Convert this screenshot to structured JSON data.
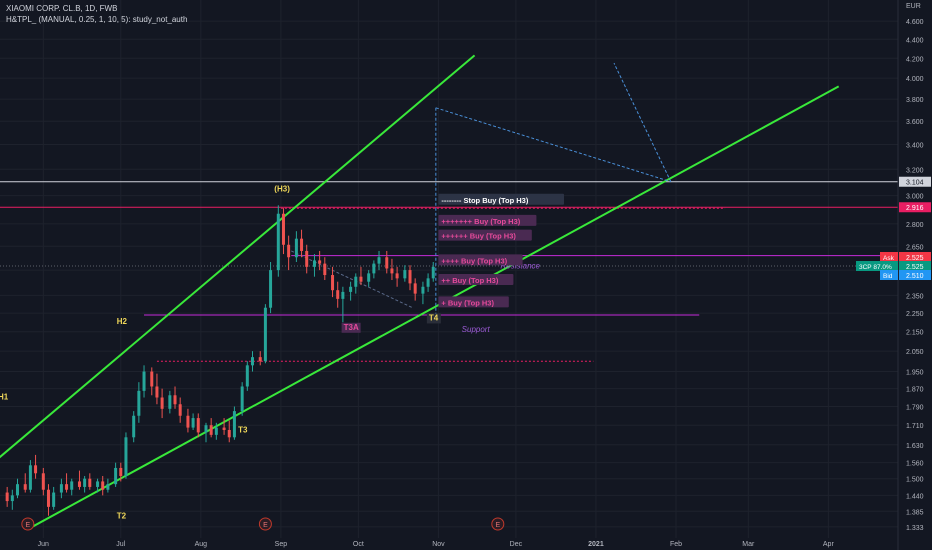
{
  "header": {
    "symbol_line": "XIAOMI CORP. CL.B, 1D, FWB",
    "study_line": "H&TPL_ (MANUAL, 0.25, 1, 10, 5): study_not_auth"
  },
  "colors": {
    "background": "#131722",
    "up": "#26a69a",
    "down": "#ef5350",
    "channel": "#39e83a",
    "magenta": "#c62bd9",
    "red_line": "#e91e63",
    "label_text": "#f0d85a",
    "buy_box": "#4a2a52",
    "buy_text": "#e64a9b"
  },
  "chart_data": {
    "type": "candlestick",
    "currency": "EUR",
    "x_ticks": [
      "Jun",
      "Jul",
      "Aug",
      "Sep",
      "Oct",
      "Nov",
      "Dec",
      "2021",
      "Feb",
      "Mar",
      "Apr"
    ],
    "y_ticks": [
      "4.600",
      "4.400",
      "4.200",
      "4.000",
      "3.800",
      "3.600",
      "3.400",
      "3.200",
      "3.000",
      "2.800",
      "2.650",
      "2.500",
      "2.350",
      "2.250",
      "2.150",
      "2.050",
      "1.950",
      "1.870",
      "1.790",
      "1.710",
      "1.630",
      "1.560",
      "1.500",
      "1.440",
      "1.385",
      "1.333"
    ],
    "ylim": [
      1.31,
      4.75
    ],
    "scale": "log",
    "series": [
      {
        "date": "2020-05-18",
        "o": 1.45,
        "h": 1.47,
        "l": 1.4,
        "c": 1.42
      },
      {
        "date": "2020-05-20",
        "o": 1.42,
        "h": 1.46,
        "l": 1.39,
        "c": 1.44
      },
      {
        "date": "2020-05-22",
        "o": 1.44,
        "h": 1.5,
        "l": 1.43,
        "c": 1.48
      },
      {
        "date": "2020-05-25",
        "o": 1.48,
        "h": 1.52,
        "l": 1.45,
        "c": 1.46
      },
      {
        "date": "2020-05-27",
        "o": 1.46,
        "h": 1.57,
        "l": 1.45,
        "c": 1.55
      },
      {
        "date": "2020-05-29",
        "o": 1.55,
        "h": 1.59,
        "l": 1.5,
        "c": 1.52
      },
      {
        "date": "2020-06-01",
        "o": 1.52,
        "h": 1.54,
        "l": 1.44,
        "c": 1.46
      },
      {
        "date": "2020-06-03",
        "o": 1.46,
        "h": 1.48,
        "l": 1.37,
        "c": 1.4
      },
      {
        "date": "2020-06-05",
        "o": 1.4,
        "h": 1.47,
        "l": 1.39,
        "c": 1.45
      },
      {
        "date": "2020-06-08",
        "o": 1.45,
        "h": 1.5,
        "l": 1.43,
        "c": 1.48
      },
      {
        "date": "2020-06-10",
        "o": 1.48,
        "h": 1.52,
        "l": 1.45,
        "c": 1.46
      },
      {
        "date": "2020-06-12",
        "o": 1.46,
        "h": 1.5,
        "l": 1.44,
        "c": 1.49
      },
      {
        "date": "2020-06-15",
        "o": 1.49,
        "h": 1.53,
        "l": 1.46,
        "c": 1.47
      },
      {
        "date": "2020-06-17",
        "o": 1.47,
        "h": 1.51,
        "l": 1.45,
        "c": 1.5
      },
      {
        "date": "2020-06-19",
        "o": 1.5,
        "h": 1.52,
        "l": 1.46,
        "c": 1.47
      },
      {
        "date": "2020-06-22",
        "o": 1.47,
        "h": 1.5,
        "l": 1.45,
        "c": 1.49
      },
      {
        "date": "2020-06-24",
        "o": 1.49,
        "h": 1.51,
        "l": 1.44,
        "c": 1.46
      },
      {
        "date": "2020-06-26",
        "o": 1.46,
        "h": 1.5,
        "l": 1.45,
        "c": 1.48
      },
      {
        "date": "2020-06-29",
        "o": 1.48,
        "h": 1.56,
        "l": 1.47,
        "c": 1.54
      },
      {
        "date": "2020-07-01",
        "o": 1.54,
        "h": 1.56,
        "l": 1.49,
        "c": 1.51
      },
      {
        "date": "2020-07-03",
        "o": 1.51,
        "h": 1.68,
        "l": 1.5,
        "c": 1.66
      },
      {
        "date": "2020-07-06",
        "o": 1.66,
        "h": 1.77,
        "l": 1.64,
        "c": 1.75
      },
      {
        "date": "2020-07-08",
        "o": 1.75,
        "h": 1.9,
        "l": 1.72,
        "c": 1.86
      },
      {
        "date": "2020-07-10",
        "o": 1.86,
        "h": 1.98,
        "l": 1.83,
        "c": 1.95
      },
      {
        "date": "2020-07-13",
        "o": 1.95,
        "h": 1.97,
        "l": 1.84,
        "c": 1.88
      },
      {
        "date": "2020-07-15",
        "o": 1.88,
        "h": 1.94,
        "l": 1.8,
        "c": 1.83
      },
      {
        "date": "2020-07-17",
        "o": 1.83,
        "h": 1.87,
        "l": 1.74,
        "c": 1.78
      },
      {
        "date": "2020-07-20",
        "o": 1.78,
        "h": 1.86,
        "l": 1.76,
        "c": 1.84
      },
      {
        "date": "2020-07-22",
        "o": 1.84,
        "h": 1.88,
        "l": 1.78,
        "c": 1.8
      },
      {
        "date": "2020-07-24",
        "o": 1.8,
        "h": 1.83,
        "l": 1.72,
        "c": 1.75
      },
      {
        "date": "2020-07-27",
        "o": 1.75,
        "h": 1.78,
        "l": 1.68,
        "c": 1.7
      },
      {
        "date": "2020-07-29",
        "o": 1.7,
        "h": 1.76,
        "l": 1.69,
        "c": 1.74
      },
      {
        "date": "2020-07-31",
        "o": 1.74,
        "h": 1.76,
        "l": 1.66,
        "c": 1.68
      },
      {
        "date": "2020-08-03",
        "o": 1.68,
        "h": 1.72,
        "l": 1.64,
        "c": 1.71
      },
      {
        "date": "2020-08-05",
        "o": 1.71,
        "h": 1.74,
        "l": 1.66,
        "c": 1.67
      },
      {
        "date": "2020-08-07",
        "o": 1.67,
        "h": 1.72,
        "l": 1.65,
        "c": 1.7
      },
      {
        "date": "2020-08-10",
        "o": 1.7,
        "h": 1.74,
        "l": 1.67,
        "c": 1.69
      },
      {
        "date": "2020-08-12",
        "o": 1.69,
        "h": 1.73,
        "l": 1.64,
        "c": 1.66
      },
      {
        "date": "2020-08-14",
        "o": 1.66,
        "h": 1.79,
        "l": 1.65,
        "c": 1.77
      },
      {
        "date": "2020-08-17",
        "o": 1.77,
        "h": 1.9,
        "l": 1.75,
        "c": 1.88
      },
      {
        "date": "2020-08-19",
        "o": 1.88,
        "h": 2.0,
        "l": 1.86,
        "c": 1.98
      },
      {
        "date": "2020-08-21",
        "o": 1.98,
        "h": 2.05,
        "l": 1.95,
        "c": 2.02
      },
      {
        "date": "2020-08-24",
        "o": 2.02,
        "h": 2.05,
        "l": 1.98,
        "c": 2.0
      },
      {
        "date": "2020-08-26",
        "o": 2.0,
        "h": 2.3,
        "l": 1.99,
        "c": 2.28
      },
      {
        "date": "2020-08-28",
        "o": 2.28,
        "h": 2.55,
        "l": 2.25,
        "c": 2.5
      },
      {
        "date": "2020-08-31",
        "o": 2.5,
        "h": 2.93,
        "l": 2.46,
        "c": 2.87
      },
      {
        "date": "2020-09-02",
        "o": 2.87,
        "h": 2.91,
        "l": 2.6,
        "c": 2.66
      },
      {
        "date": "2020-09-04",
        "o": 2.66,
        "h": 2.72,
        "l": 2.5,
        "c": 2.58
      },
      {
        "date": "2020-09-07",
        "o": 2.58,
        "h": 2.75,
        "l": 2.55,
        "c": 2.7
      },
      {
        "date": "2020-09-09",
        "o": 2.7,
        "h": 2.76,
        "l": 2.58,
        "c": 2.62
      },
      {
        "date": "2020-09-11",
        "o": 2.62,
        "h": 2.66,
        "l": 2.48,
        "c": 2.52
      },
      {
        "date": "2020-09-14",
        "o": 2.52,
        "h": 2.6,
        "l": 2.46,
        "c": 2.56
      },
      {
        "date": "2020-09-16",
        "o": 2.56,
        "h": 2.62,
        "l": 2.5,
        "c": 2.54
      },
      {
        "date": "2020-09-18",
        "o": 2.54,
        "h": 2.58,
        "l": 2.44,
        "c": 2.47
      },
      {
        "date": "2020-09-21",
        "o": 2.47,
        "h": 2.52,
        "l": 2.34,
        "c": 2.38
      },
      {
        "date": "2020-09-23",
        "o": 2.38,
        "h": 2.43,
        "l": 2.28,
        "c": 2.33
      },
      {
        "date": "2020-09-25",
        "o": 2.33,
        "h": 2.4,
        "l": 2.2,
        "c": 2.37
      },
      {
        "date": "2020-09-28",
        "o": 2.37,
        "h": 2.43,
        "l": 2.32,
        "c": 2.4
      },
      {
        "date": "2020-09-30",
        "o": 2.4,
        "h": 2.48,
        "l": 2.36,
        "c": 2.46
      },
      {
        "date": "2020-10-02",
        "o": 2.46,
        "h": 2.52,
        "l": 2.41,
        "c": 2.43
      },
      {
        "date": "2020-10-05",
        "o": 2.43,
        "h": 2.5,
        "l": 2.4,
        "c": 2.48
      },
      {
        "date": "2020-10-07",
        "o": 2.48,
        "h": 2.56,
        "l": 2.45,
        "c": 2.54
      },
      {
        "date": "2020-10-09",
        "o": 2.54,
        "h": 2.62,
        "l": 2.5,
        "c": 2.58
      },
      {
        "date": "2020-10-12",
        "o": 2.58,
        "h": 2.62,
        "l": 2.48,
        "c": 2.51
      },
      {
        "date": "2020-10-14",
        "o": 2.51,
        "h": 2.57,
        "l": 2.44,
        "c": 2.48
      },
      {
        "date": "2020-10-16",
        "o": 2.48,
        "h": 2.52,
        "l": 2.4,
        "c": 2.45
      },
      {
        "date": "2020-10-19",
        "o": 2.45,
        "h": 2.53,
        "l": 2.43,
        "c": 2.5
      },
      {
        "date": "2020-10-21",
        "o": 2.5,
        "h": 2.53,
        "l": 2.38,
        "c": 2.42
      },
      {
        "date": "2020-10-23",
        "o": 2.42,
        "h": 2.45,
        "l": 2.32,
        "c": 2.36
      },
      {
        "date": "2020-10-26",
        "o": 2.36,
        "h": 2.43,
        "l": 2.3,
        "c": 2.4
      },
      {
        "date": "2020-10-28",
        "o": 2.4,
        "h": 2.48,
        "l": 2.37,
        "c": 2.45
      },
      {
        "date": "2020-10-30",
        "o": 2.45,
        "h": 2.55,
        "l": 2.43,
        "c": 2.52
      }
    ],
    "channel_lines": [
      {
        "name": "channel-upper",
        "points": [
          [
            "2020-05-15",
            1.58
          ],
          [
            "2020-11-15",
            4.23
          ]
        ]
      },
      {
        "name": "channel-lower",
        "points": [
          [
            "2020-05-27",
            1.33
          ],
          [
            "2021-04-05",
            3.92
          ]
        ]
      }
    ],
    "horizontal_levels": [
      {
        "value": 3.104,
        "label": "3.104",
        "style": "solid",
        "color": "#d1d4dc"
      },
      {
        "value": 2.916,
        "label": "2.916",
        "style": "solid",
        "color": "#e91e63"
      },
      {
        "value": 2.59,
        "style": "solid",
        "color": "#c62bd9",
        "annotation": "Resistance"
      },
      {
        "value": 2.24,
        "style": "solid",
        "color": "#c62bd9",
        "annotation": "Support"
      },
      {
        "value": 2.0,
        "style": "dotted",
        "color": "#e91e63"
      }
    ],
    "buy_levels": [
      {
        "label": "-------- Stop Buy (Top H3)",
        "value": 2.97
      },
      {
        "label": "+++++++ Buy (Top H3)",
        "value": 2.82
      },
      {
        "label": "++++++ Buy (Top H3)",
        "value": 2.72
      },
      {
        "label": "++++ Buy (Top H3)",
        "value": 2.56
      },
      {
        "label": "++ Buy (Top H3)",
        "value": 2.44
      },
      {
        "label": "+ Buy (Top H3)",
        "value": 2.31
      }
    ],
    "pattern_labels": [
      {
        "text": "H1",
        "date": "2020-05-16",
        "value": 1.82
      },
      {
        "text": "H2",
        "date": "2020-07-01",
        "value": 2.19
      },
      {
        "text": "(H3)",
        "date": "2020-08-31",
        "value": 3.03
      },
      {
        "text": "T2",
        "date": "2020-07-01",
        "value": 1.36
      },
      {
        "text": "T3",
        "date": "2020-08-17",
        "value": 1.68
      },
      {
        "text": "T3A",
        "date": "2020-09-28",
        "value": 2.16
      },
      {
        "text": "T4",
        "date": "2020-10-31",
        "value": 2.21
      }
    ],
    "earnings_markers": [
      {
        "text": "E",
        "date": "2020-05-26"
      },
      {
        "text": "E",
        "date": "2020-08-26"
      },
      {
        "text": "E",
        "date": "2020-11-24"
      }
    ],
    "price_labels": {
      "ask_label": "Ask",
      "ask_value": "2.525",
      "mid_label": "3CP 87.0%",
      "mid_value": "2.525",
      "bid_label": "Bid",
      "bid_value": "2.510"
    }
  }
}
